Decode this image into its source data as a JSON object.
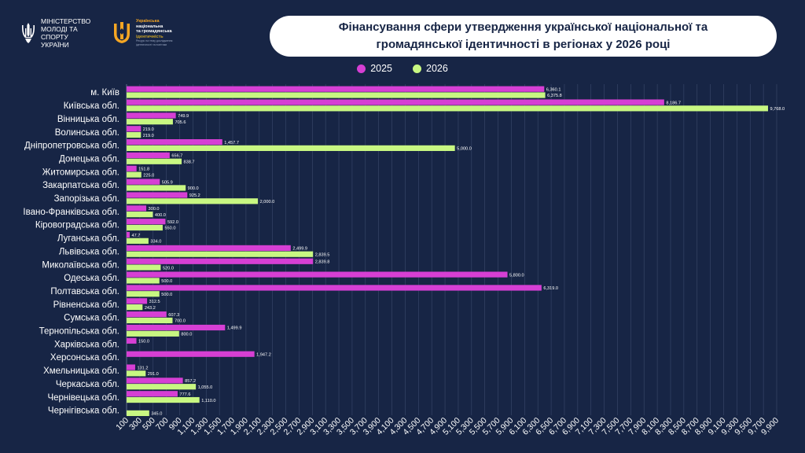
{
  "header": {
    "ministry_line1": "Міністерство",
    "ministry_line2": "молоді та спорту",
    "ministry_line3": "України",
    "brand_line1": "Українська",
    "brand_line2": "національна",
    "brand_line3": "та громадянська",
    "brand_line4": "ідентичність",
    "brand_sub": "Ресурс на тему дослідження ідентичності та політики",
    "title_line1": "Фінансування сфери утвердження української національної та",
    "title_line2": "громадянської ідентичності в регіонах у 2026 році"
  },
  "colors": {
    "series_2025": "#d63fd4",
    "series_2026": "#c8f782",
    "background": "#172545",
    "label": "#ffffff"
  },
  "icons": {
    "ministry": "trident-icon",
    "brand": "brand-emblem-icon"
  },
  "chart_data": {
    "type": "bar",
    "orientation": "horizontal",
    "title": "Фінансування сфери утвердження української національної та громадянської ідентичності в регіонах у 2026 році",
    "legend_placement": "top-center",
    "grid": true,
    "xlim": [
      100,
      9900
    ],
    "x_ticks": [
      100,
      300,
      500,
      700,
      900,
      1100,
      1300,
      1500,
      1700,
      1900,
      2100,
      2300,
      2500,
      2700,
      2900,
      3100,
      3300,
      3500,
      3700,
      3900,
      4100,
      4300,
      4500,
      4700,
      4900,
      5100,
      5300,
      5500,
      5700,
      5900,
      6100,
      6300,
      6500,
      6700,
      6900,
      7100,
      7300,
      7500,
      7700,
      7900,
      8100,
      8300,
      8500,
      8700,
      8900,
      9100,
      9300,
      9500,
      9700,
      9900
    ],
    "x_tick_labels": [
      "100",
      "300",
      "500",
      "700",
      "900",
      "1,100",
      "1,300",
      "1,500",
      "1,700",
      "1,900",
      "2,100",
      "2,300",
      "2,500",
      "2,700",
      "2,900",
      "3,100",
      "3,300",
      "3,500",
      "3,700",
      "3,900",
      "4,100",
      "4,300",
      "4,500",
      "4,700",
      "4,900",
      "5,100",
      "5,300",
      "5,500",
      "5,700",
      "5,900",
      "6,100",
      "6,300",
      "6,500",
      "6,700",
      "6,900",
      "7,100",
      "7,300",
      "7,500",
      "7,700",
      "7,900",
      "8,100",
      "8,300",
      "8,500",
      "8,700",
      "8,900",
      "9,100",
      "9,300",
      "9,500",
      "9,700",
      "9,900"
    ],
    "categories": [
      "м. Київ",
      "Київська обл.",
      "Вінницька обл.",
      "Волинська обл.",
      "Дніпропетровська обл.",
      "Донецька обл.",
      "Житомирська обл.",
      "Закарпатська обл.",
      "Запорізька обл.",
      "Івано-Франківська обл.",
      "Кіровоградська обл.",
      "Луганська обл.",
      "Львівська обл.",
      "Миколаївська обл.",
      "Одеська обл.",
      "Полтавська обл.",
      "Рівненська обл.",
      "Сумська обл.",
      "Тернопільська обл.",
      "Харківська обл.",
      "Херсонська обл.",
      "Хмельницька обл.",
      "Черкаська обл.",
      "Чернівецька обл.",
      "Чернігівська обл."
    ],
    "series": [
      {
        "name": "2025",
        "values": [
          6360.1,
          8186.7,
          749.9,
          219.0,
          1457.7,
          656.7,
          151.8,
          505.9,
          925.2,
          300.0,
          592.0,
          47.7,
          2499.9,
          2839.8,
          5800.0,
          6319.0,
          312.5,
          607.3,
          1499.9,
          150.0,
          1947.2,
          131.2,
          857.2,
          777.6,
          null
        ],
        "labels": [
          "6,360.1",
          "8,186.7",
          "749.9",
          "219.0",
          "1,457.7",
          "656.7",
          "151.8",
          "505.9",
          "925.2",
          "300.0",
          "592.0",
          "47.7",
          "2,499.9",
          "2,839.8",
          "5,800.0",
          "6,319.0",
          "312.5",
          "607.3",
          "1,499.9",
          "150.0",
          "1,947.2",
          "131.2",
          "857.2",
          "777.6",
          ""
        ]
      },
      {
        "name": "2026",
        "values": [
          6375.8,
          9768.0,
          705.6,
          219.0,
          5000.0,
          838.7,
          225.0,
          900.0,
          2000.0,
          400.0,
          550.0,
          334.0,
          2839.5,
          520.0,
          500.0,
          500.0,
          243.2,
          700.0,
          800.0,
          null,
          null,
          291.0,
          1055.0,
          1110.0,
          345.0
        ],
        "labels": [
          "6,375.8",
          "9,768.0",
          "705.6",
          "219.0",
          "5,000.0",
          "838.7",
          "225.0",
          "900.0",
          "2,000.0",
          "400.0",
          "550.0",
          "334.0",
          "2,839.5",
          "520.0",
          "500.0",
          "500.0",
          "243.2",
          "700.0",
          "800.0",
          "",
          "",
          "291.0",
          "1,055.0",
          "1,110.0",
          "345.0"
        ]
      }
    ]
  }
}
